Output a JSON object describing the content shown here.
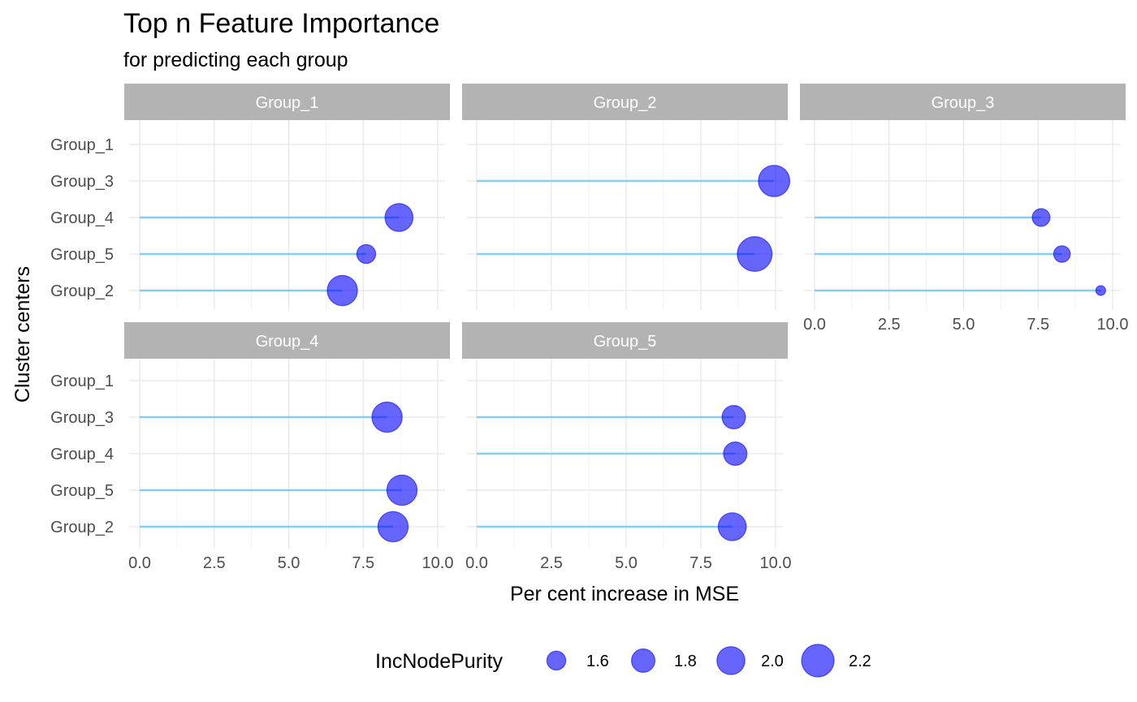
{
  "chart_data": {
    "type": "lollipop-facet",
    "title": "Top n Feature Importance",
    "subtitle": "for predicting each group",
    "xlabel": "Per cent increase in MSE",
    "ylabel": "Cluster centers",
    "xlim": [
      0,
      10
    ],
    "x_ticks": [
      "0.0",
      "2.5",
      "5.0",
      "7.5",
      "10.0"
    ],
    "categories": [
      "Group_1",
      "Group_3",
      "Group_4",
      "Group_5",
      "Group_2"
    ],
    "size_legend": {
      "title": "IncNodePurity",
      "position": "bottom",
      "entries": [
        {
          "label": "1.6",
          "value": 1.6
        },
        {
          "label": "1.8",
          "value": 1.8
        },
        {
          "label": "2.0",
          "value": 2.0
        },
        {
          "label": "2.2",
          "value": 2.2
        }
      ]
    },
    "panels": [
      {
        "name": "Group_1",
        "points": [
          {
            "feature": "Group_4",
            "x": 8.7,
            "size": 2.0
          },
          {
            "feature": "Group_5",
            "x": 7.6,
            "size": 1.6
          },
          {
            "feature": "Group_2",
            "x": 6.8,
            "size": 2.1
          }
        ]
      },
      {
        "name": "Group_2",
        "points": [
          {
            "feature": "Group_3",
            "x": 9.95,
            "size": 2.15
          },
          {
            "feature": "Group_5",
            "x": 9.3,
            "size": 2.3
          }
        ]
      },
      {
        "name": "Group_3",
        "points": [
          {
            "feature": "Group_4",
            "x": 7.6,
            "size": 1.55
          },
          {
            "feature": "Group_5",
            "x": 8.3,
            "size": 1.5
          },
          {
            "feature": "Group_2",
            "x": 9.6,
            "size": 1.2
          }
        ]
      },
      {
        "name": "Group_4",
        "points": [
          {
            "feature": "Group_3",
            "x": 8.3,
            "size": 2.1
          },
          {
            "feature": "Group_5",
            "x": 8.8,
            "size": 2.1
          },
          {
            "feature": "Group_2",
            "x": 8.5,
            "size": 2.1
          }
        ]
      },
      {
        "name": "Group_5",
        "points": [
          {
            "feature": "Group_3",
            "x": 8.6,
            "size": 1.8
          },
          {
            "feature": "Group_4",
            "x": 8.65,
            "size": 1.8
          },
          {
            "feature": "Group_2",
            "x": 8.55,
            "size": 2.0
          }
        ]
      }
    ]
  }
}
